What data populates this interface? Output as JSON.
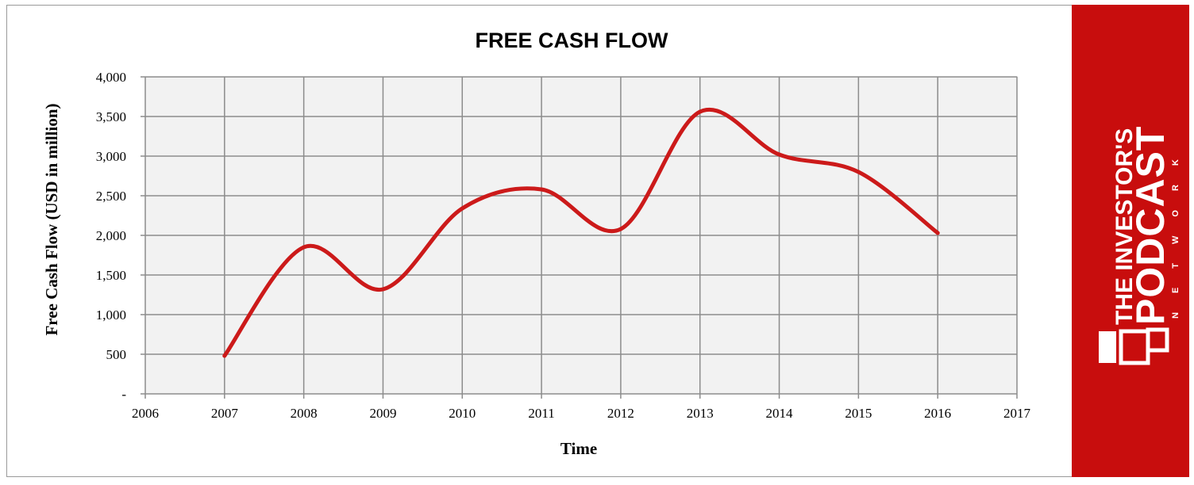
{
  "chart_data": {
    "type": "line",
    "title": "FREE CASH FLOW",
    "xlabel": "Time",
    "ylabel": "Free Cash Flow (USD in million)",
    "xlim": [
      2006,
      2017
    ],
    "ylim": [
      0,
      4000
    ],
    "x_ticks": [
      "2006",
      "2007",
      "2008",
      "2009",
      "2010",
      "2011",
      "2012",
      "2013",
      "2014",
      "2015",
      "2016",
      "2017"
    ],
    "y_ticks": [
      "-",
      "500",
      "1,000",
      "1,500",
      "2,000",
      "2,500",
      "3,000",
      "3,500",
      "4,000"
    ],
    "grid": true,
    "smooth": true,
    "series": [
      {
        "x": [
          2007,
          2008,
          2009,
          2010,
          2011,
          2012,
          2013,
          2014,
          2015,
          2016
        ],
        "values": [
          480,
          1850,
          1320,
          2340,
          2580,
          2080,
          3560,
          3020,
          2800,
          2030
        ]
      }
    ],
    "colors": {
      "line": "#cc1a1a",
      "plot_bg": "#f2f2f2",
      "grid": "#8c8c8c"
    }
  },
  "brand": {
    "line1": "THE INVESTOR'S",
    "line2": "PODCAST",
    "line3": "NETWORK",
    "color": "#c80d0d",
    "logo_icon": "tip-logo-icon"
  }
}
